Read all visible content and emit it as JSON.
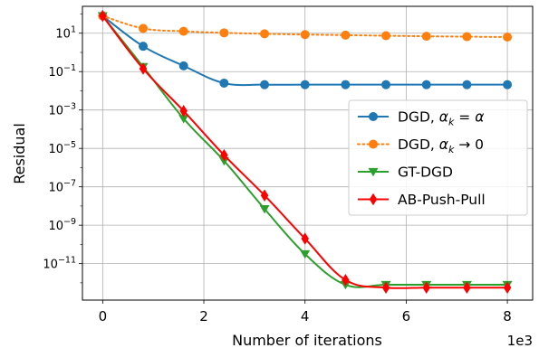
{
  "chart_data": {
    "type": "line",
    "xlabel": "Number of iterations",
    "ylabel": "Residual",
    "x_offset_label": "1e3",
    "xlim": [
      -0.4,
      8.5
    ],
    "xticks": [
      0,
      2,
      4,
      6,
      8
    ],
    "xtick_labels": [
      "0",
      "2",
      "4",
      "6",
      "8"
    ],
    "yscale": "log",
    "ylim_log10": [
      -12.9,
      2.4
    ],
    "yticks_log10": [
      1,
      -1,
      -3,
      -5,
      -7,
      -9,
      -11
    ],
    "ytick_labels": [
      {
        "base": "10",
        "exp": "1"
      },
      {
        "base": "10",
        "exp": "−1"
      },
      {
        "base": "10",
        "exp": "−3"
      },
      {
        "base": "10",
        "exp": "−5"
      },
      {
        "base": "10",
        "exp": "−7"
      },
      {
        "base": "10",
        "exp": "−9"
      },
      {
        "base": "10",
        "exp": "−11"
      }
    ],
    "grid": true,
    "legend_position": "center-right",
    "series": [
      {
        "name": "DGD, α_k = α",
        "legend": {
          "main": "DGD, ",
          "sym": "α",
          "sub": "k",
          "rest": " = ",
          "sym2": "α"
        },
        "color": "#1f77b4",
        "style": "solid",
        "marker": "circle",
        "x": [
          0,
          0.8,
          1.6,
          2.4,
          3.2,
          4.0,
          4.8,
          5.6,
          6.4,
          7.2,
          8.0
        ],
        "log10_y": [
          1.9,
          0.32,
          -0.7,
          -1.6,
          -1.68,
          -1.68,
          -1.68,
          -1.68,
          -1.68,
          -1.68,
          -1.68
        ]
      },
      {
        "name": "DGD, α_k → 0",
        "legend": {
          "main": "DGD, ",
          "sym": "α",
          "sub": "k",
          "rest": " → 0",
          "sym2": ""
        },
        "color": "#ff7f0e",
        "style": "dotted",
        "marker": "circle",
        "x": [
          0,
          0.8,
          1.6,
          2.4,
          3.2,
          4.0,
          4.8,
          5.6,
          6.4,
          7.2,
          8.0
        ],
        "log10_y": [
          1.9,
          1.25,
          1.1,
          1.02,
          0.97,
          0.93,
          0.9,
          0.87,
          0.84,
          0.82,
          0.8
        ]
      },
      {
        "name": "GT-DGD",
        "legend": {
          "main": "GT-DGD"
        },
        "color": "#2ca02c",
        "style": "solid",
        "marker": "triangle-down",
        "x": [
          0,
          0.8,
          1.6,
          2.4,
          3.2,
          4.0,
          4.8,
          5.6,
          6.4,
          7.2,
          8.0
        ],
        "log10_y": [
          1.9,
          -0.75,
          -3.45,
          -5.65,
          -8.15,
          -10.5,
          -12.1,
          -12.1,
          -12.1,
          -12.1,
          -12.1
        ]
      },
      {
        "name": "AB-Push-Pull",
        "legend": {
          "main": "AB-Push-Pull"
        },
        "color": "#ff0000",
        "style": "solid",
        "marker": "diamond",
        "x": [
          0,
          0.8,
          1.6,
          2.4,
          3.2,
          4.0,
          4.8,
          5.6,
          6.4,
          7.2,
          8.0
        ],
        "log10_y": [
          1.9,
          -0.85,
          -3.05,
          -5.35,
          -7.45,
          -9.7,
          -11.85,
          -12.25,
          -12.25,
          -12.25,
          -12.25
        ]
      }
    ]
  }
}
